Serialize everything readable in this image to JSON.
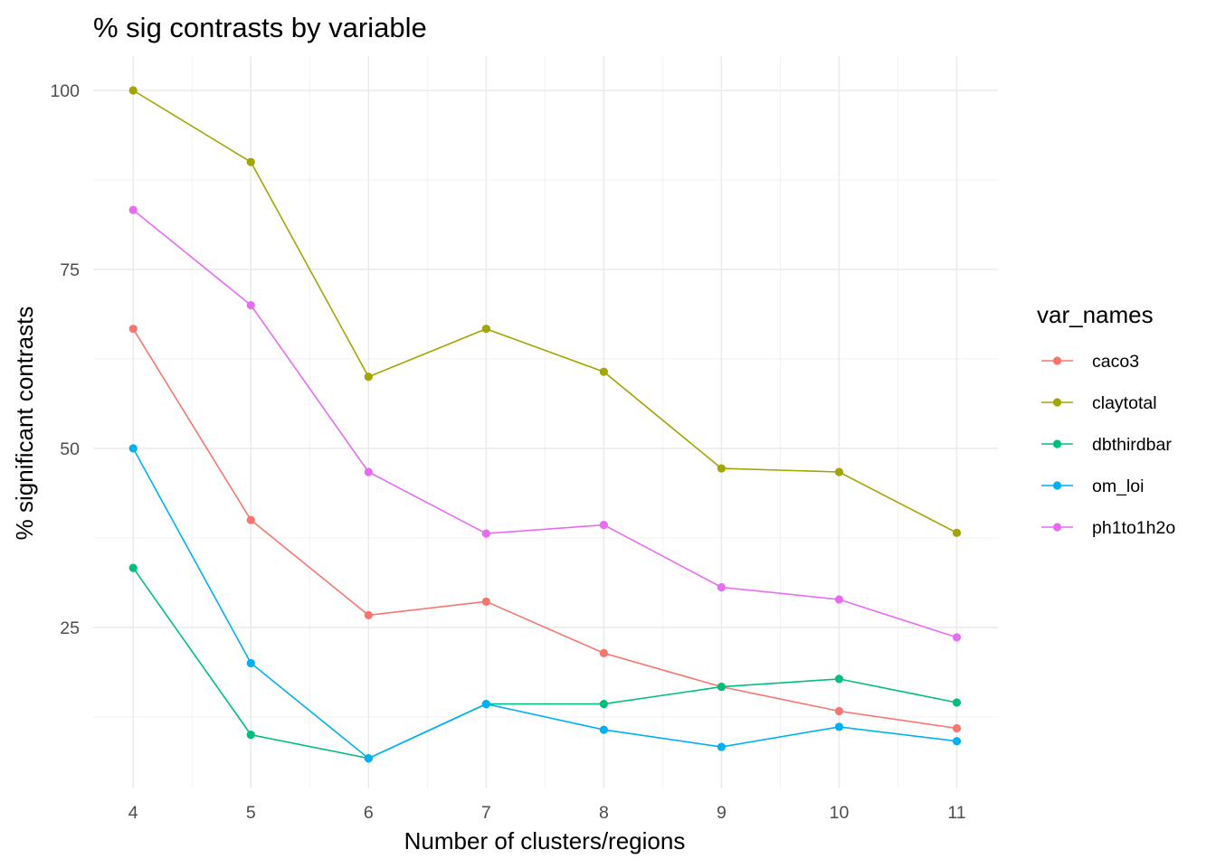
{
  "chart_data": {
    "type": "line",
    "title": "% sig contrasts by variable",
    "xlabel": "Number of clusters/regions",
    "ylabel": "% significant contrasts",
    "x": [
      4,
      5,
      6,
      7,
      8,
      9,
      10,
      11
    ],
    "xlim": [
      3.66,
      11.35
    ],
    "ylim": [
      2.5,
      104.8
    ],
    "x_ticks": [
      "4",
      "5",
      "6",
      "7",
      "8",
      "9",
      "10",
      "11"
    ],
    "y_ticks": [
      "25",
      "50",
      "75",
      "100"
    ],
    "y_tick_values": [
      25,
      50,
      75,
      100
    ],
    "grid": true,
    "legend_position": "right",
    "legend_title": "var_names",
    "series": [
      {
        "name": "caco3",
        "color": "#F8766D",
        "values": [
          66.7,
          40.0,
          26.7,
          28.6,
          21.4,
          16.7,
          13.3,
          10.9
        ]
      },
      {
        "name": "claytotal",
        "color": "#A3A500",
        "values": [
          100.0,
          90.0,
          60.0,
          66.7,
          60.7,
          47.2,
          46.7,
          38.2
        ]
      },
      {
        "name": "dbthirdbar",
        "color": "#00BF7D",
        "values": [
          33.3,
          10.0,
          6.7,
          14.3,
          14.3,
          16.7,
          17.8,
          14.5
        ]
      },
      {
        "name": "om_loi",
        "color": "#00B0F6",
        "values": [
          50.0,
          20.0,
          6.7,
          14.3,
          10.7,
          8.3,
          11.1,
          9.1
        ]
      },
      {
        "name": "ph1to1h2o",
        "color": "#E76BF3",
        "values": [
          83.3,
          70.0,
          46.7,
          38.1,
          39.3,
          30.6,
          28.9,
          23.6
        ]
      }
    ]
  }
}
